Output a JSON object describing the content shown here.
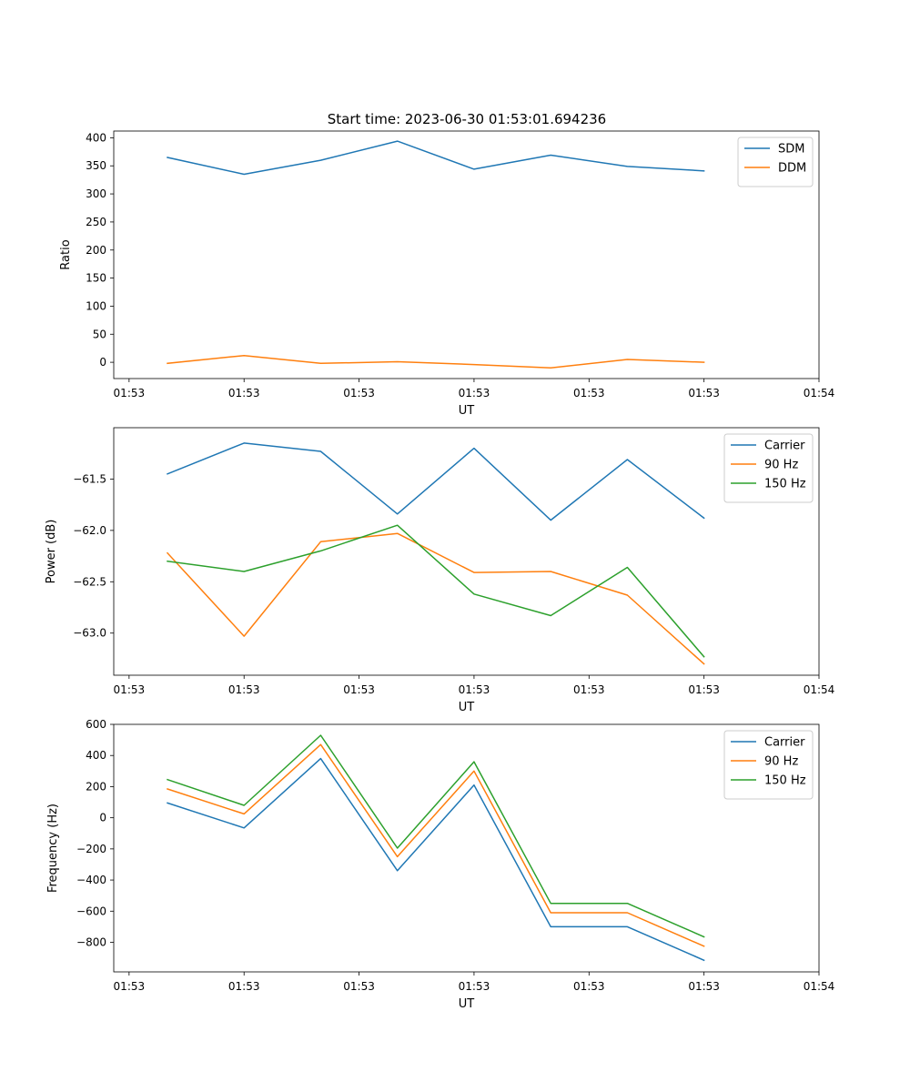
{
  "figure": {
    "title": "Start time: 2023-06-30 01:53:01.694236"
  },
  "chart_data": [
    {
      "type": "line",
      "title": "Start time: 2023-06-30 01:53:01.694236",
      "xlabel": "UT",
      "ylabel": "Ratio",
      "x": [
        0.5,
        1.5,
        2.5,
        3.5,
        4.5,
        5.5,
        6.5,
        7.5
      ],
      "xlim": [
        -0.2,
        9.0
      ],
      "xticks": [
        0,
        1.5,
        3.0,
        4.5,
        6.0,
        7.5,
        9.0
      ],
      "xtick_labels": [
        "01:53",
        "01:53",
        "01:53",
        "01:53",
        "01:53",
        "01:53",
        "01:54"
      ],
      "ylim": [
        -29,
        412
      ],
      "yticks": [
        0,
        50,
        100,
        150,
        200,
        250,
        300,
        350,
        400
      ],
      "ytick_labels": [
        "0",
        "50",
        "100",
        "150",
        "200",
        "250",
        "300",
        "350",
        "400"
      ],
      "legend": "top-right",
      "series": [
        {
          "name": "SDM",
          "color": "#1f77b4",
          "values": [
            365,
            335,
            360,
            394,
            344,
            369,
            349,
            341
          ]
        },
        {
          "name": "DDM",
          "color": "#ff7f0e",
          "values": [
            -2,
            12,
            -2,
            1,
            -4,
            -10,
            5,
            0
          ]
        }
      ]
    },
    {
      "type": "line",
      "xlabel": "UT",
      "ylabel": "Power (dB)",
      "x": [
        0.5,
        1.5,
        2.5,
        3.5,
        4.5,
        5.5,
        6.5,
        7.5
      ],
      "xlim": [
        -0.2,
        9.0
      ],
      "xticks": [
        0,
        1.5,
        3.0,
        4.5,
        6.0,
        7.5,
        9.0
      ],
      "xtick_labels": [
        "01:53",
        "01:53",
        "01:53",
        "01:53",
        "01:53",
        "01:53",
        "01:54"
      ],
      "ylim": [
        -63.41,
        -61.0
      ],
      "yticks": [
        -61.5,
        -62.0,
        -62.5,
        -63.0
      ],
      "ytick_labels": [
        "−61.5",
        "−62.0",
        "−62.5",
        "−63.0"
      ],
      "legend": "top-right",
      "series": [
        {
          "name": "Carrier",
          "color": "#1f77b4",
          "values": [
            -61.45,
            -61.15,
            -61.23,
            -61.84,
            -61.2,
            -61.9,
            -61.31,
            -61.88
          ]
        },
        {
          "name": "90 Hz",
          "color": "#ff7f0e",
          "values": [
            -62.22,
            -63.03,
            -62.11,
            -62.03,
            -62.41,
            -62.4,
            -62.63,
            -63.3
          ]
        },
        {
          "name": "150 Hz",
          "color": "#2ca02c",
          "values": [
            -62.3,
            -62.4,
            -62.2,
            -61.95,
            -62.62,
            -62.83,
            -62.36,
            -63.23
          ]
        }
      ]
    },
    {
      "type": "line",
      "xlabel": "UT",
      "ylabel": "Frequency (Hz)",
      "x": [
        0.5,
        1.5,
        2.5,
        3.5,
        4.5,
        5.5,
        6.5,
        7.5
      ],
      "xlim": [
        -0.2,
        9.0
      ],
      "xticks": [
        0,
        1.5,
        3.0,
        4.5,
        6.0,
        7.5,
        9.0
      ],
      "xtick_labels": [
        "01:53",
        "01:53",
        "01:53",
        "01:53",
        "01:53",
        "01:53",
        "01:54"
      ],
      "ylim": [
        -990,
        600
      ],
      "yticks": [
        600,
        400,
        200,
        0,
        -200,
        -400,
        -600,
        -800
      ],
      "ytick_labels": [
        "600",
        "400",
        "200",
        "0",
        "−200",
        "−400",
        "−600",
        "−800"
      ],
      "legend": "top-right",
      "series": [
        {
          "name": "Carrier",
          "color": "#1f77b4",
          "values": [
            95,
            -65,
            380,
            -340,
            210,
            -700,
            -700,
            -915
          ]
        },
        {
          "name": "90 Hz",
          "color": "#ff7f0e",
          "values": [
            185,
            25,
            470,
            -250,
            300,
            -610,
            -610,
            -825
          ]
        },
        {
          "name": "150 Hz",
          "color": "#2ca02c",
          "values": [
            245,
            80,
            530,
            -195,
            360,
            -550,
            -550,
            -765
          ]
        }
      ]
    }
  ]
}
